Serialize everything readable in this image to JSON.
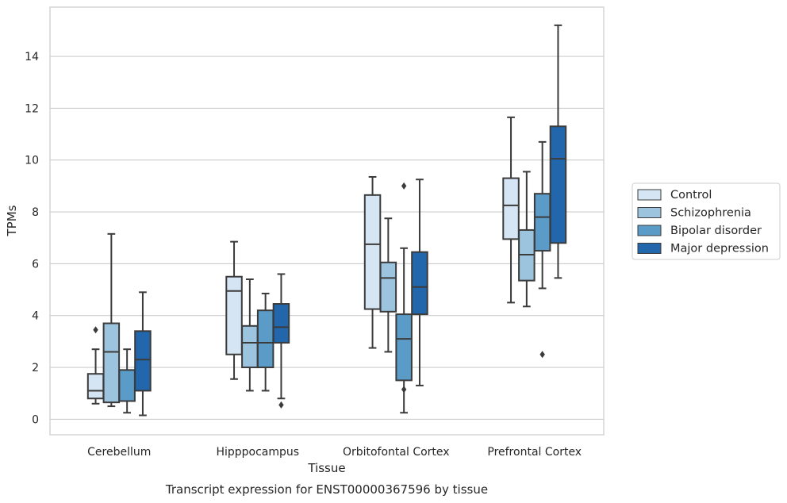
{
  "chart_data": {
    "type": "box",
    "caption": "Transcript expression for ENST00000367596 by tissue",
    "xlabel": "Tissue",
    "ylabel": "TPMs",
    "ylim": [
      -0.6,
      15.9
    ],
    "yticks": [
      0,
      2,
      4,
      6,
      8,
      10,
      12,
      14
    ],
    "grid": "horizontal",
    "legend_position": "right",
    "categories": [
      "Cerebellum",
      "Hipppocampus",
      "Orbitofontal Cortex",
      "Prefrontal Cortex"
    ],
    "series": [
      {
        "name": "Control",
        "color": "#d6e5f3",
        "boxes": [
          {
            "whislo": 0.6,
            "q1": 0.8,
            "med": 1.1,
            "q3": 1.75,
            "whishi": 2.7,
            "fliers": [
              3.45
            ]
          },
          {
            "whislo": 1.55,
            "q1": 2.5,
            "med": 4.95,
            "q3": 5.5,
            "whishi": 6.85,
            "fliers": []
          },
          {
            "whislo": 2.75,
            "q1": 4.25,
            "med": 6.75,
            "q3": 8.65,
            "whishi": 9.35,
            "fliers": []
          },
          {
            "whislo": 4.5,
            "q1": 6.95,
            "med": 8.25,
            "q3": 9.3,
            "whishi": 11.65,
            "fliers": []
          }
        ]
      },
      {
        "name": "Schizophrenia",
        "color": "#9dc4de",
        "boxes": [
          {
            "whislo": 0.5,
            "q1": 0.65,
            "med": 2.6,
            "q3": 3.7,
            "whishi": 7.15,
            "fliers": []
          },
          {
            "whislo": 1.1,
            "q1": 2.0,
            "med": 2.95,
            "q3": 3.6,
            "whishi": 5.4,
            "fliers": []
          },
          {
            "whislo": 2.6,
            "q1": 4.15,
            "med": 5.45,
            "q3": 6.05,
            "whishi": 7.75,
            "fliers": []
          },
          {
            "whislo": 4.35,
            "q1": 5.35,
            "med": 6.35,
            "q3": 7.3,
            "whishi": 9.55,
            "fliers": []
          }
        ]
      },
      {
        "name": "Bipolar disorder",
        "color": "#5b9bc8",
        "boxes": [
          {
            "whislo": 0.25,
            "q1": 0.7,
            "med": 0.7,
            "q3": 1.9,
            "whishi": 2.7,
            "fliers": []
          },
          {
            "whislo": 1.1,
            "q1": 2.0,
            "med": 2.95,
            "q3": 4.2,
            "whishi": 4.85,
            "fliers": []
          },
          {
            "whislo": 0.25,
            "q1": 1.5,
            "med": 3.1,
            "q3": 4.05,
            "whishi": 6.6,
            "fliers": [
              1.15,
              9.0
            ]
          },
          {
            "whislo": 5.05,
            "q1": 6.5,
            "med": 7.8,
            "q3": 8.7,
            "whishi": 10.7,
            "fliers": [
              2.5
            ]
          }
        ]
      },
      {
        "name": "Major depression",
        "color": "#2266ac",
        "boxes": [
          {
            "whislo": 0.15,
            "q1": 1.1,
            "med": 2.3,
            "q3": 3.4,
            "whishi": 4.9,
            "fliers": []
          },
          {
            "whislo": 0.8,
            "q1": 2.95,
            "med": 3.55,
            "q3": 4.45,
            "whishi": 5.6,
            "fliers": [
              0.55
            ]
          },
          {
            "whislo": 1.3,
            "q1": 4.05,
            "med": 5.1,
            "q3": 6.45,
            "whishi": 9.25,
            "fliers": []
          },
          {
            "whislo": 5.45,
            "q1": 6.8,
            "med": 10.05,
            "q3": 11.3,
            "whishi": 15.2,
            "fliers": []
          }
        ]
      }
    ]
  }
}
